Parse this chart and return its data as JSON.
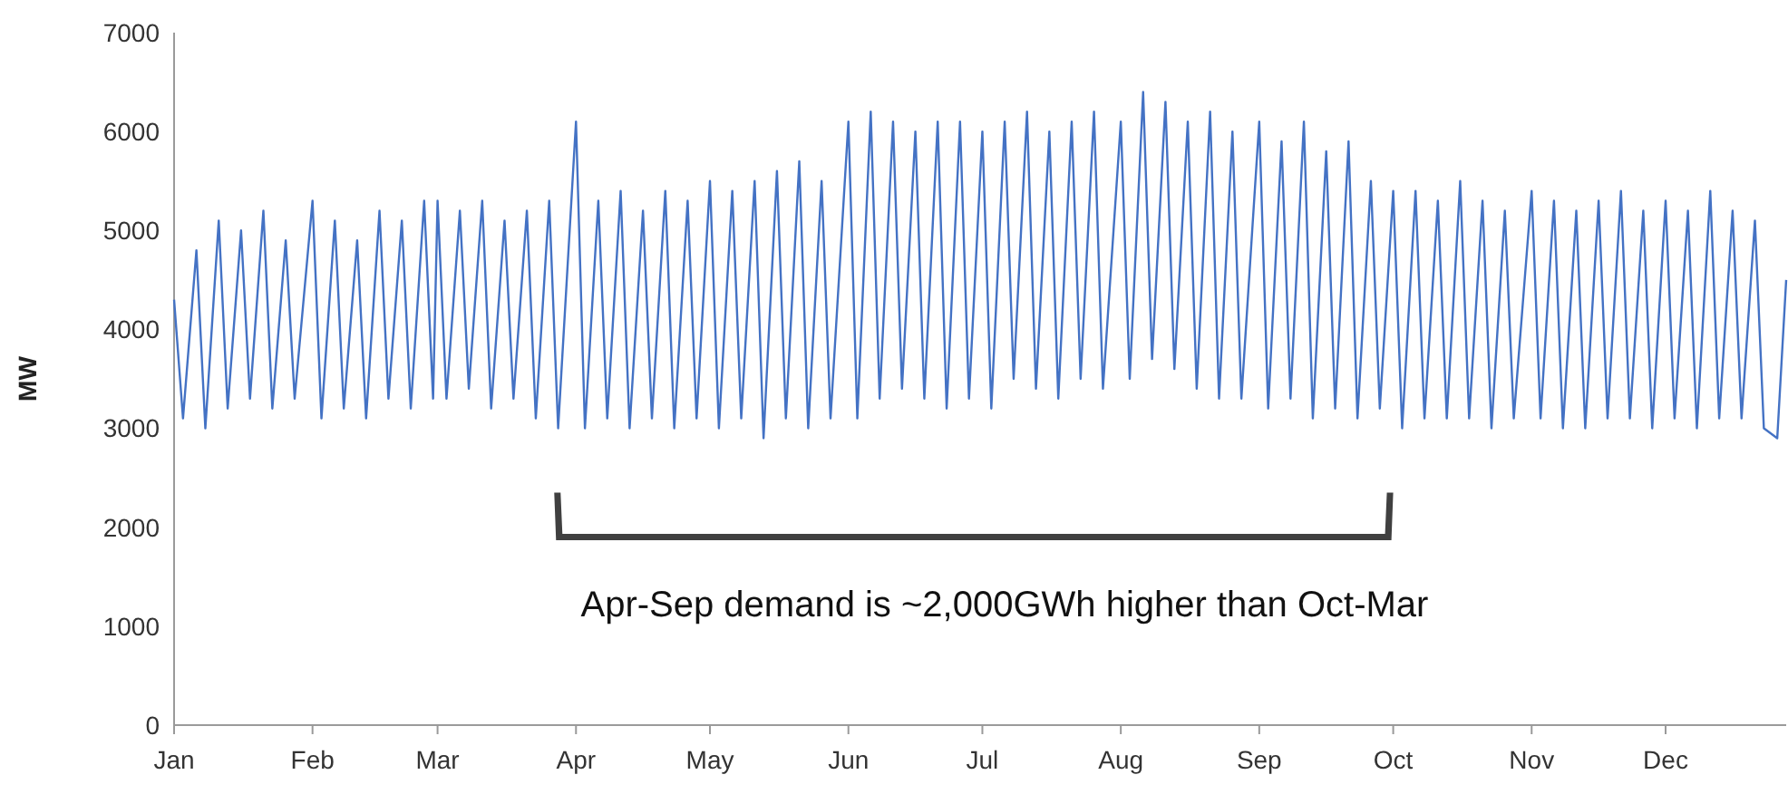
{
  "chart_data": {
    "type": "line",
    "ylabel": "MW",
    "ylim": [
      0,
      7000
    ],
    "yticks": [
      0,
      1000,
      2000,
      3000,
      4000,
      5000,
      6000,
      7000
    ],
    "xlim": [
      "--01-01",
      "--12-28"
    ],
    "xticks": [
      {
        "value": "--01-01",
        "label": "Jan"
      },
      {
        "value": "--02-01",
        "label": "Feb"
      },
      {
        "value": "--03-01",
        "label": "Mar"
      },
      {
        "value": "--04-01",
        "label": "Apr"
      },
      {
        "value": "--05-01",
        "label": "May"
      },
      {
        "value": "--06-01",
        "label": "Jun"
      },
      {
        "value": "--07-01",
        "label": "Jul"
      },
      {
        "value": "--08-01",
        "label": "Aug"
      },
      {
        "value": "--09-01",
        "label": "Sep"
      },
      {
        "value": "--10-01",
        "label": "Oct"
      },
      {
        "value": "--11-01",
        "label": "Nov"
      },
      {
        "value": "--12-01",
        "label": "Dec"
      }
    ],
    "grid": false,
    "marker": "none",
    "line_style": "solid",
    "annotations": [
      "Apr-Sep demand is ~2,000GWh higher than Oct-Mar"
    ],
    "x": [
      "--01-01",
      "--01-03",
      "--01-06",
      "--01-08",
      "--01-11",
      "--01-13",
      "--01-16",
      "--01-18",
      "--01-21",
      "--01-23",
      "--01-26",
      "--01-28",
      "--02-01",
      "--02-03",
      "--02-06",
      "--02-08",
      "--02-11",
      "--02-13",
      "--02-16",
      "--02-18",
      "--02-21",
      "--02-23",
      "--02-26",
      "--02-28",
      "--03-01",
      "--03-03",
      "--03-06",
      "--03-08",
      "--03-11",
      "--03-13",
      "--03-16",
      "--03-18",
      "--03-21",
      "--03-23",
      "--03-26",
      "--03-28",
      "--04-01",
      "--04-03",
      "--04-06",
      "--04-08",
      "--04-11",
      "--04-13",
      "--04-16",
      "--04-18",
      "--04-21",
      "--04-23",
      "--04-26",
      "--04-28",
      "--05-01",
      "--05-03",
      "--05-06",
      "--05-08",
      "--05-11",
      "--05-13",
      "--05-16",
      "--05-18",
      "--05-21",
      "--05-23",
      "--05-26",
      "--05-28",
      "--06-01",
      "--06-03",
      "--06-06",
      "--06-08",
      "--06-11",
      "--06-13",
      "--06-16",
      "--06-18",
      "--06-21",
      "--06-23",
      "--06-26",
      "--06-28",
      "--07-01",
      "--07-03",
      "--07-06",
      "--07-08",
      "--07-11",
      "--07-13",
      "--07-16",
      "--07-18",
      "--07-21",
      "--07-23",
      "--07-26",
      "--07-28",
      "--08-01",
      "--08-03",
      "--08-06",
      "--08-08",
      "--08-11",
      "--08-13",
      "--08-16",
      "--08-18",
      "--08-21",
      "--08-23",
      "--08-26",
      "--08-28",
      "--09-01",
      "--09-03",
      "--09-06",
      "--09-08",
      "--09-11",
      "--09-13",
      "--09-16",
      "--09-18",
      "--09-21",
      "--09-23",
      "--09-26",
      "--09-28",
      "--10-01",
      "--10-03",
      "--10-06",
      "--10-08",
      "--10-11",
      "--10-13",
      "--10-16",
      "--10-18",
      "--10-21",
      "--10-23",
      "--10-26",
      "--10-28",
      "--11-01",
      "--11-03",
      "--11-06",
      "--11-08",
      "--11-11",
      "--11-13",
      "--11-16",
      "--11-18",
      "--11-21",
      "--11-23",
      "--11-26",
      "--11-28",
      "--12-01",
      "--12-03",
      "--12-06",
      "--12-08",
      "--12-11",
      "--12-13",
      "--12-16",
      "--12-18",
      "--12-21",
      "--12-23",
      "--12-26",
      "--12-28"
    ],
    "series": [
      {
        "color": "#4472c4",
        "values": [
          4300,
          3100,
          4800,
          3000,
          5100,
          3200,
          5000,
          3300,
          5200,
          3200,
          4900,
          3300,
          5300,
          3100,
          5100,
          3200,
          4900,
          3100,
          5200,
          3300,
          5100,
          3200,
          5300,
          3300,
          5300,
          3300,
          5200,
          3400,
          5300,
          3200,
          5100,
          3300,
          5200,
          3100,
          5300,
          3000,
          6100,
          3000,
          5300,
          3100,
          5400,
          3000,
          5200,
          3100,
          5400,
          3000,
          5300,
          3100,
          5500,
          3000,
          5400,
          3100,
          5500,
          2900,
          5600,
          3100,
          5700,
          3000,
          5500,
          3100,
          6100,
          3100,
          6200,
          3300,
          6100,
          3400,
          6000,
          3300,
          6100,
          3200,
          6100,
          3300,
          6000,
          3200,
          6100,
          3500,
          6200,
          3400,
          6000,
          3300,
          6100,
          3500,
          6200,
          3400,
          6100,
          3500,
          6400,
          3700,
          6300,
          3600,
          6100,
          3400,
          6200,
          3300,
          6000,
          3300,
          6100,
          3200,
          5900,
          3300,
          6100,
          3100,
          5800,
          3200,
          5900,
          3100,
          5500,
          3200,
          5400,
          3000,
          5400,
          3100,
          5300,
          3100,
          5500,
          3100,
          5300,
          3000,
          5200,
          3100,
          5400,
          3100,
          5300,
          3000,
          5200,
          3000,
          5300,
          3100,
          5400,
          3100,
          5200,
          3000,
          5300,
          3100,
          5200,
          3000,
          5400,
          3100,
          5200,
          3100,
          5100,
          3000,
          2900,
          4500
        ]
      }
    ]
  }
}
